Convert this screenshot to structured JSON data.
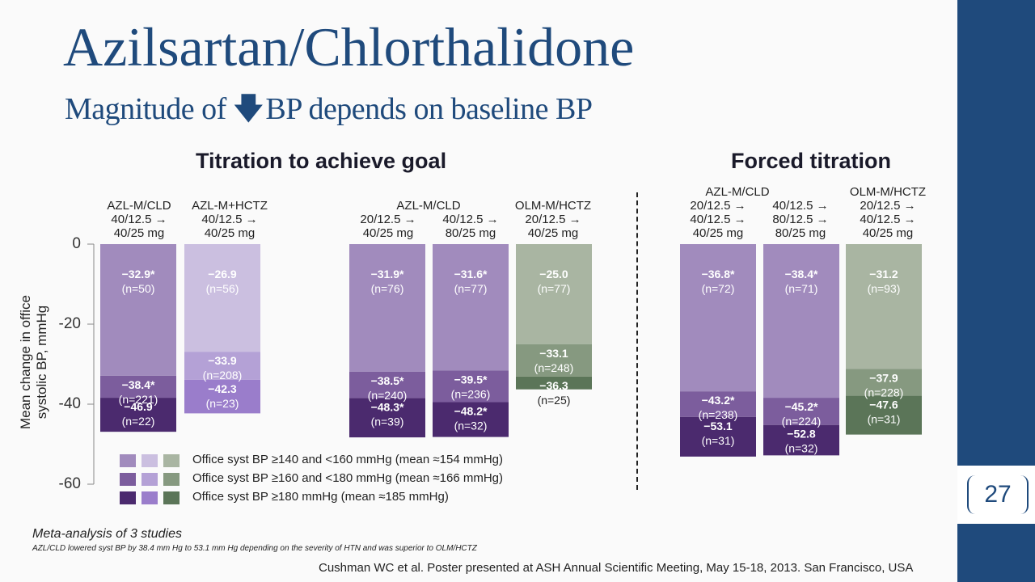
{
  "title": "Azilsartan/Chlorthalidone",
  "subtitle": {
    "before": "Magnitude of",
    "arrow": "🡇",
    "after": "BP depends on baseline BP"
  },
  "sections": {
    "left": "Titration to achieve goal",
    "right": "Forced titration"
  },
  "group_headers": [
    "AZL-M/CLD\n40/12.5 →\n40/25 mg",
    "AZL-M+HCTZ\n40/12.5 →\n40/25 mg",
    "AZL-M/CLD",
    "20/12.5 →\n40/25 mg",
    "40/12.5 →\n80/25 mg",
    "OLM-M/HCTZ\n20/12.5 →\n40/25 mg",
    "AZL-M/CLD",
    "20/12.5 →\n40/12.5 →\n40/25 mg",
    "40/12.5 →\n80/12.5 →\n80/25 mg",
    "OLM-M/HCTZ\n20/12.5 →\n40/12.5 →\n40/25 mg"
  ],
  "y_axis_label": "Mean change in office systolic BP, mmHg",
  "legend": [
    "Office syst BP ≥140 and <160 mmHg (mean ≈154 mmHg)",
    "Office syst BP ≥160 and <180 mmHg (mean ≈166 mmHg)",
    "Office syst BP ≥180 mmHg (mean ≈185 mmHg)"
  ],
  "colors": {
    "purple": [
      "#a18bbd",
      "#7c5d9d",
      "#4b2a6e"
    ],
    "lilac": [
      "#cbbfe0",
      "#b4a1d6",
      "#9a7dcb"
    ],
    "green": [
      "#a9b5a2",
      "#869980",
      "#5b7558"
    ]
  },
  "footnote_main": "Meta-analysis of 3 studies",
  "footnote_detail": "AZL/CLD lowered syst BP by 38.4 mm Hg to 53.1 mm Hg depending on the severity of HTN and was superior to OLM/HCTZ",
  "citation": "Cushman WC et al. Poster presented at ASH Annual Scientific Meeting, May 15-18, 2013. San Francisco, USA",
  "slide_number": "27",
  "chart_data": {
    "type": "bar",
    "ylim": [
      -60,
      0
    ],
    "y_ticks": [
      "0",
      "-20",
      "-40",
      "-60"
    ],
    "grid": false,
    "legend_placement": "bottom-left",
    "series": [
      {
        "name": "Office syst BP ≥140 and <160 mmHg (mean ≈154 mmHg)",
        "values": [
          -32.9,
          -26.9,
          -31.9,
          -31.6,
          -25.0,
          -36.8,
          -38.4,
          -31.2
        ],
        "labels": [
          "−32.9*",
          "−26.9",
          "−31.9*",
          "−31.6*",
          "−25.0",
          "−36.8*",
          "−38.4*",
          "−31.2"
        ],
        "n": [
          "(n=50)",
          "(n=56)",
          "(n=76)",
          "(n=77)",
          "(n=77)",
          "(n=72)",
          "(n=71)",
          "(n=93)"
        ]
      },
      {
        "name": "Office syst BP ≥160 and <180 mmHg (mean ≈166 mmHg)",
        "values": [
          -38.4,
          -33.9,
          -38.5,
          -39.5,
          -33.1,
          -43.2,
          -45.2,
          -37.9
        ],
        "labels": [
          "−38.4*",
          "−33.9",
          "−38.5*",
          "−39.5*",
          "−33.1",
          "−43.2*",
          "−45.2*",
          "−37.9"
        ],
        "n": [
          "(n=221)",
          "(n=208)",
          "(n=240)",
          "(n=236)",
          "(n=248)",
          "(n=238)",
          "(n=224)",
          "(n=228)"
        ]
      },
      {
        "name": "Office syst BP ≥180 mmHg (mean ≈185 mmHg)",
        "values": [
          -46.9,
          -42.3,
          -48.3,
          -48.2,
          -36.3,
          -53.1,
          -52.8,
          -47.6
        ],
        "labels": [
          "−46.9",
          "−42.3",
          "−48.3*",
          "−48.2*",
          "−36.3",
          "−53.1",
          "−52.8",
          "−47.6"
        ],
        "n": [
          "(n=22)",
          "(n=23)",
          "(n=39)",
          "(n=32)",
          "(n=25)",
          "(n=31)",
          "(n=32)",
          "(n=31)"
        ]
      }
    ]
  }
}
